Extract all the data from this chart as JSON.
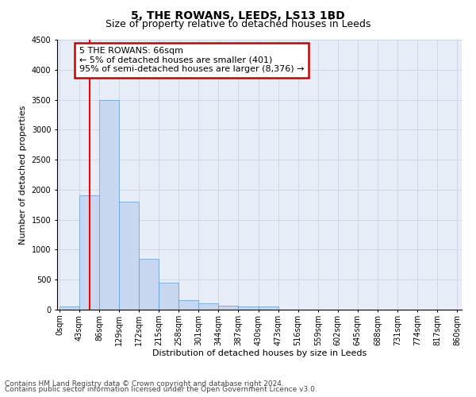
{
  "title": "5, THE ROWANS, LEEDS, LS13 1BD",
  "subtitle": "Size of property relative to detached houses in Leeds",
  "xlabel": "Distribution of detached houses by size in Leeds",
  "ylabel": "Number of detached properties",
  "footnote1": "Contains HM Land Registry data © Crown copyright and database right 2024.",
  "footnote2": "Contains public sector information licensed under the Open Government Licence v3.0.",
  "bin_edges": [
    0,
    43,
    86,
    129,
    172,
    215,
    258,
    301,
    344,
    387,
    430,
    473,
    516,
    559,
    602,
    645,
    688,
    731,
    774,
    817,
    860
  ],
  "bin_labels": [
    "0sqm",
    "43sqm",
    "86sqm",
    "129sqm",
    "172sqm",
    "215sqm",
    "258sqm",
    "301sqm",
    "344sqm",
    "387sqm",
    "430sqm",
    "473sqm",
    "516sqm",
    "559sqm",
    "602sqm",
    "645sqm",
    "688sqm",
    "731sqm",
    "774sqm",
    "817sqm",
    "860sqm"
  ],
  "bar_heights": [
    50,
    1900,
    3500,
    1800,
    850,
    450,
    165,
    100,
    60,
    55,
    50,
    0,
    0,
    0,
    0,
    0,
    0,
    0,
    0,
    0
  ],
  "bar_color": "#c8d8f0",
  "bar_edge_color": "#5b9bd5",
  "red_line_x": 66,
  "ylim": [
    0,
    4500
  ],
  "yticks": [
    0,
    500,
    1000,
    1500,
    2000,
    2500,
    3000,
    3500,
    4000,
    4500
  ],
  "annotation_line1": "5 THE ROWANS: 66sqm",
  "annotation_line2": "← 5% of detached houses are smaller (401)",
  "annotation_line3": "95% of semi-detached houses are larger (8,376) →",
  "annotation_box_color": "#ffffff",
  "annotation_box_edge": "#cc0000",
  "grid_color": "#d0d8e8",
  "background_color": "#e8eef8",
  "title_fontsize": 10,
  "subtitle_fontsize": 9,
  "label_fontsize": 8,
  "tick_fontsize": 7,
  "annotation_fontsize": 8,
  "footnote_fontsize": 6.5
}
